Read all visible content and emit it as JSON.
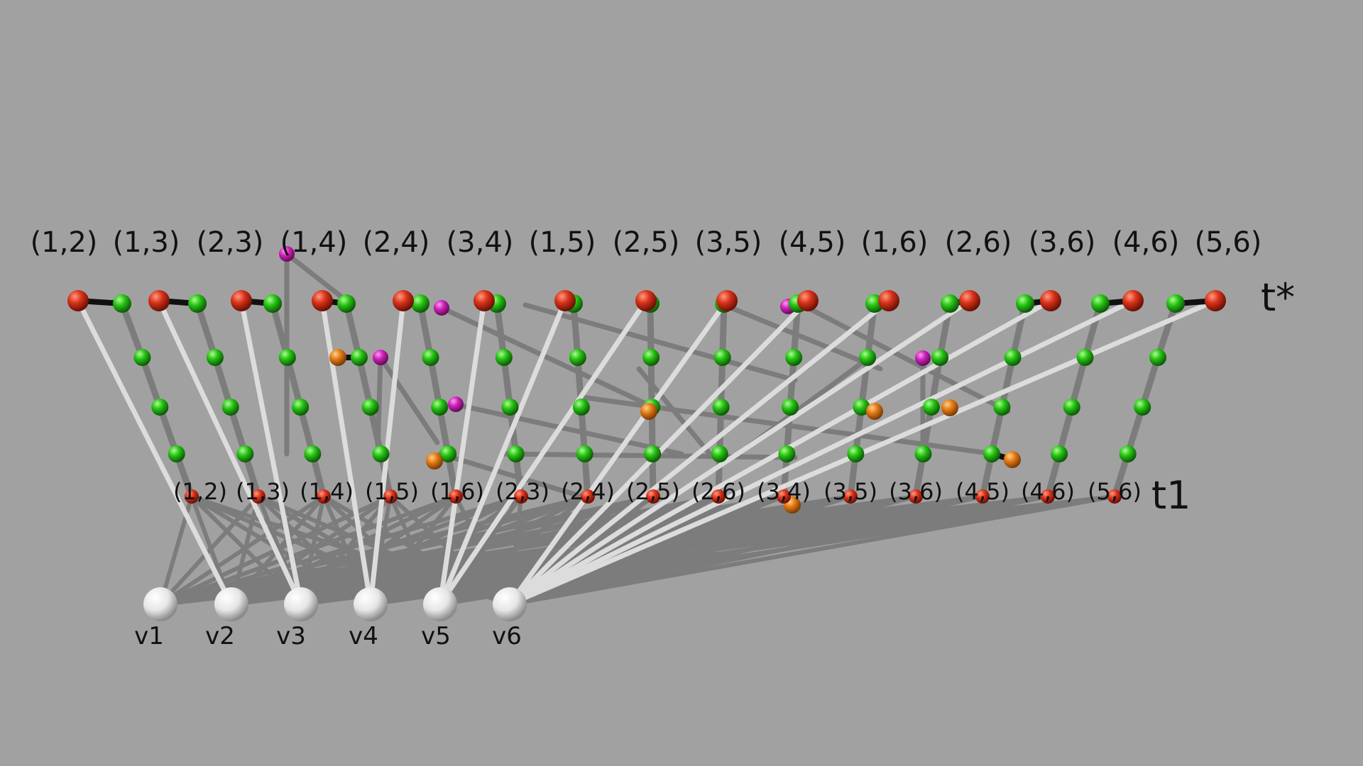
{
  "top_labels": [
    "(1,2)",
    "(1,3)",
    "(2,3)",
    "(1,4)",
    "(2,4)",
    "(3,4)",
    "(1,5)",
    "(2,5)",
    "(3,5)",
    "(4,5)",
    "(1,6)",
    "(2,6)",
    "(3,6)",
    "(4,6)",
    "(5,6)"
  ],
  "mid_labels": [
    "(1,2)",
    "(1,3)",
    "(1,4)",
    "(1,5)",
    "(1,6)",
    "(2,3)",
    "(2,4)",
    "(2,5)",
    "(2,6)",
    "(3,4)",
    "(3,5)",
    "(3,6)",
    "(4,5)",
    "(4,6)",
    "(5,6)"
  ],
  "vertex_labels": [
    "v1",
    "v2",
    "v3",
    "v4",
    "v5",
    "v6"
  ],
  "row_labels": {
    "top": "t*",
    "mid": "t1"
  },
  "colors": {
    "background": "#a1a1a1",
    "red_node": "#c8280f",
    "green_node": "#22b411",
    "orange_node": "#e07612",
    "magenta_node": "#c81eb4",
    "white_node": "#f2f2f2",
    "light_edge": "#dcdcdc",
    "dark_edge": "#7c7c7c",
    "black_edge": "#111111"
  }
}
